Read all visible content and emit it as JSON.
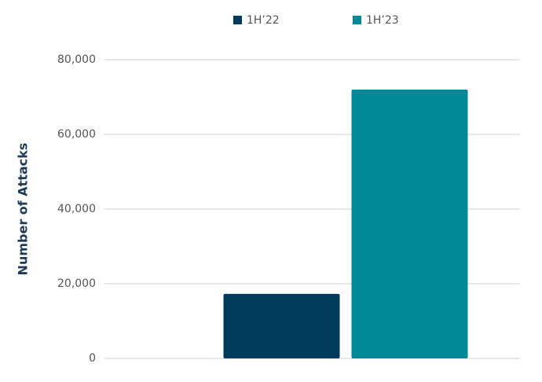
{
  "chart_data": {
    "type": "bar",
    "y_label": "Number of Attacks",
    "categories": [
      null
    ],
    "series": [
      {
        "name": "1H’22",
        "color": "#003a5d",
        "values": [
          17300
        ]
      },
      {
        "name": "1H’23",
        "color": "#008996",
        "values": [
          72000
        ]
      }
    ],
    "ylim": [
      0,
      80000
    ],
    "yticks": [
      0,
      {
        "value": 20000,
        "label": "20,000"
      },
      {
        "value": 40000,
        "label": "40,000"
      },
      {
        "value": 60000,
        "label": "60,000"
      },
      {
        "value": 80000,
        "label": "80,000"
      }
    ],
    "grid": true,
    "legend": "top"
  }
}
